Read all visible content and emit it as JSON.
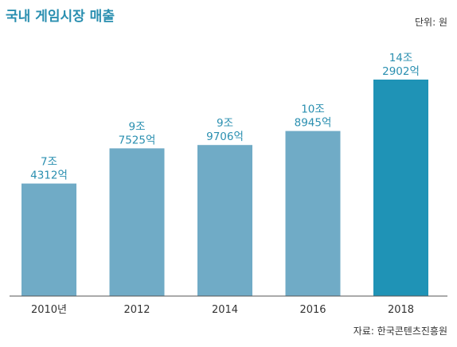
{
  "header": {
    "title": "국내 게임시장 매출",
    "unit": "단위: 원"
  },
  "footer": {
    "source": "자료: 한국콘텐츠진흥원"
  },
  "colors": {
    "bar": "#70abc6",
    "highlight_bar": "#1f93b6",
    "label": "#2a8fb0",
    "axis": "#555555"
  },
  "chart_data": {
    "type": "bar",
    "title": "국내 게임시장 매출",
    "unit": "단위: 원",
    "categories": [
      "2010년",
      "2012",
      "2014",
      "2016",
      "2018"
    ],
    "values_eok": [
      74312,
      97525,
      99706,
      108945,
      142902
    ],
    "data_labels": [
      [
        "7조",
        "4312억"
      ],
      [
        "9조",
        "7525억"
      ],
      [
        "9조",
        "9706억"
      ],
      [
        "10조",
        "8945억"
      ],
      [
        "14조",
        "2902억"
      ]
    ],
    "highlight_index": 4,
    "ylim": [
      0,
      142902
    ],
    "grid": false,
    "legend": "none"
  }
}
